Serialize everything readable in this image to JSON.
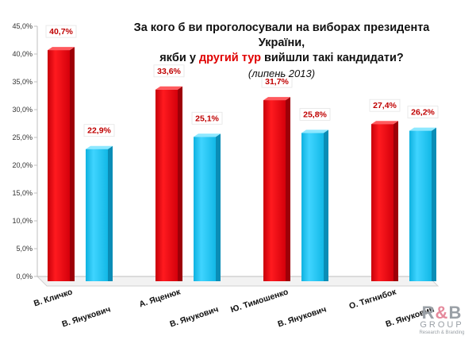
{
  "title": {
    "line1": "За кого б ви проголосували на виборах президента України,",
    "line2_a": "якби у ",
    "line2_highlight": "другий тур",
    "line2_b": " вийшли такі кандидати?",
    "line3": "(липень 2013)"
  },
  "logo": {
    "r": "R",
    "amp": "&",
    "b": "B",
    "group": "GROUP",
    "tagline": "Research & Branding"
  },
  "colors": {
    "candidate": "#e8000b",
    "yanukovych": "#17c3ef",
    "label_value": "#c00000"
  },
  "chart_data": {
    "type": "bar",
    "title": "За кого б ви проголосували на виборах президента України, якби у другий тур вийшли такі кандидати? (липень 2013)",
    "ylim": [
      0,
      45
    ],
    "yticks": [
      "0,0%",
      "5,0%",
      "10,0%",
      "15,0%",
      "20,0%",
      "25,0%",
      "30,0%",
      "35,0%",
      "40,0%",
      "45,0%"
    ],
    "grid": false,
    "pairs": [
      {
        "candidate": {
          "name": "В. Кличко",
          "value": 40.7,
          "label": "40,7%"
        },
        "opponent": {
          "name": "В. Янукович",
          "value": 22.9,
          "label": "22,9%"
        }
      },
      {
        "candidate": {
          "name": "А. Яценюк",
          "value": 33.6,
          "label": "33,6%"
        },
        "opponent": {
          "name": "В. Янукович",
          "value": 25.1,
          "label": "25,1%"
        }
      },
      {
        "candidate": {
          "name": "Ю. Тимошенко",
          "value": 31.7,
          "label": "31,7%"
        },
        "opponent": {
          "name": "В. Янукович",
          "value": 25.8,
          "label": "25,8%"
        }
      },
      {
        "candidate": {
          "name": "О. Тягнибок",
          "value": 27.4,
          "label": "27,4%"
        },
        "opponent": {
          "name": "В. Янукович",
          "value": 26.2,
          "label": "26,2%"
        }
      }
    ]
  }
}
